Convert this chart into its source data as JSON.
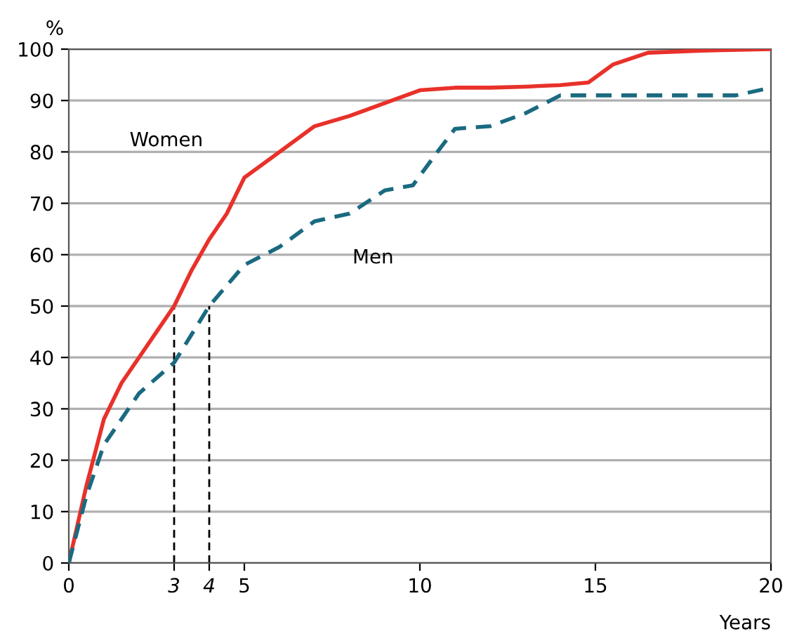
{
  "chart_data": {
    "type": "line",
    "ylabel": "%",
    "xlabel": "Years",
    "xlim": [
      0,
      20
    ],
    "ylim": [
      0,
      100
    ],
    "xticks": [
      0,
      3,
      4,
      5,
      10,
      15,
      20
    ],
    "yticks": [
      0,
      10,
      20,
      30,
      40,
      50,
      60,
      70,
      80,
      90,
      100
    ],
    "grid": "y",
    "legend": false,
    "series": [
      {
        "name": "Women",
        "color": "#e8312a",
        "line_style": "solid",
        "x": [
          0,
          0.5,
          1,
          1.5,
          2,
          2.5,
          3,
          3.5,
          4,
          4.5,
          5,
          6,
          7,
          8,
          9,
          10,
          11,
          12,
          13,
          14,
          14.8,
          15.5,
          16.5,
          18,
          20
        ],
        "values": [
          0,
          15,
          28,
          35,
          40,
          45,
          50,
          57,
          63,
          68,
          75,
          80,
          85,
          87,
          89.5,
          92,
          92.5,
          92.5,
          92.7,
          93,
          93.5,
          97,
          99.3,
          99.7,
          100
        ]
      },
      {
        "name": "Men",
        "color": "#1a6a80",
        "line_style": "dashed",
        "x": [
          0,
          0.5,
          1,
          2,
          3,
          4,
          5,
          6,
          7,
          8,
          9,
          9.8,
          10.5,
          11,
          12,
          13,
          14,
          15,
          17,
          19,
          20
        ],
        "values": [
          0,
          13,
          23,
          33,
          39,
          50,
          58,
          61.5,
          66.5,
          68,
          72.5,
          73.5,
          80,
          84.5,
          85,
          87.5,
          91,
          91,
          91,
          91,
          92.5
        ]
      }
    ],
    "ref_lines": [
      {
        "axis": "x",
        "value": 3,
        "color": "#000000",
        "line_style": "dashed"
      },
      {
        "axis": "x",
        "value": 4,
        "color": "#000000",
        "line_style": "dashed"
      }
    ]
  }
}
